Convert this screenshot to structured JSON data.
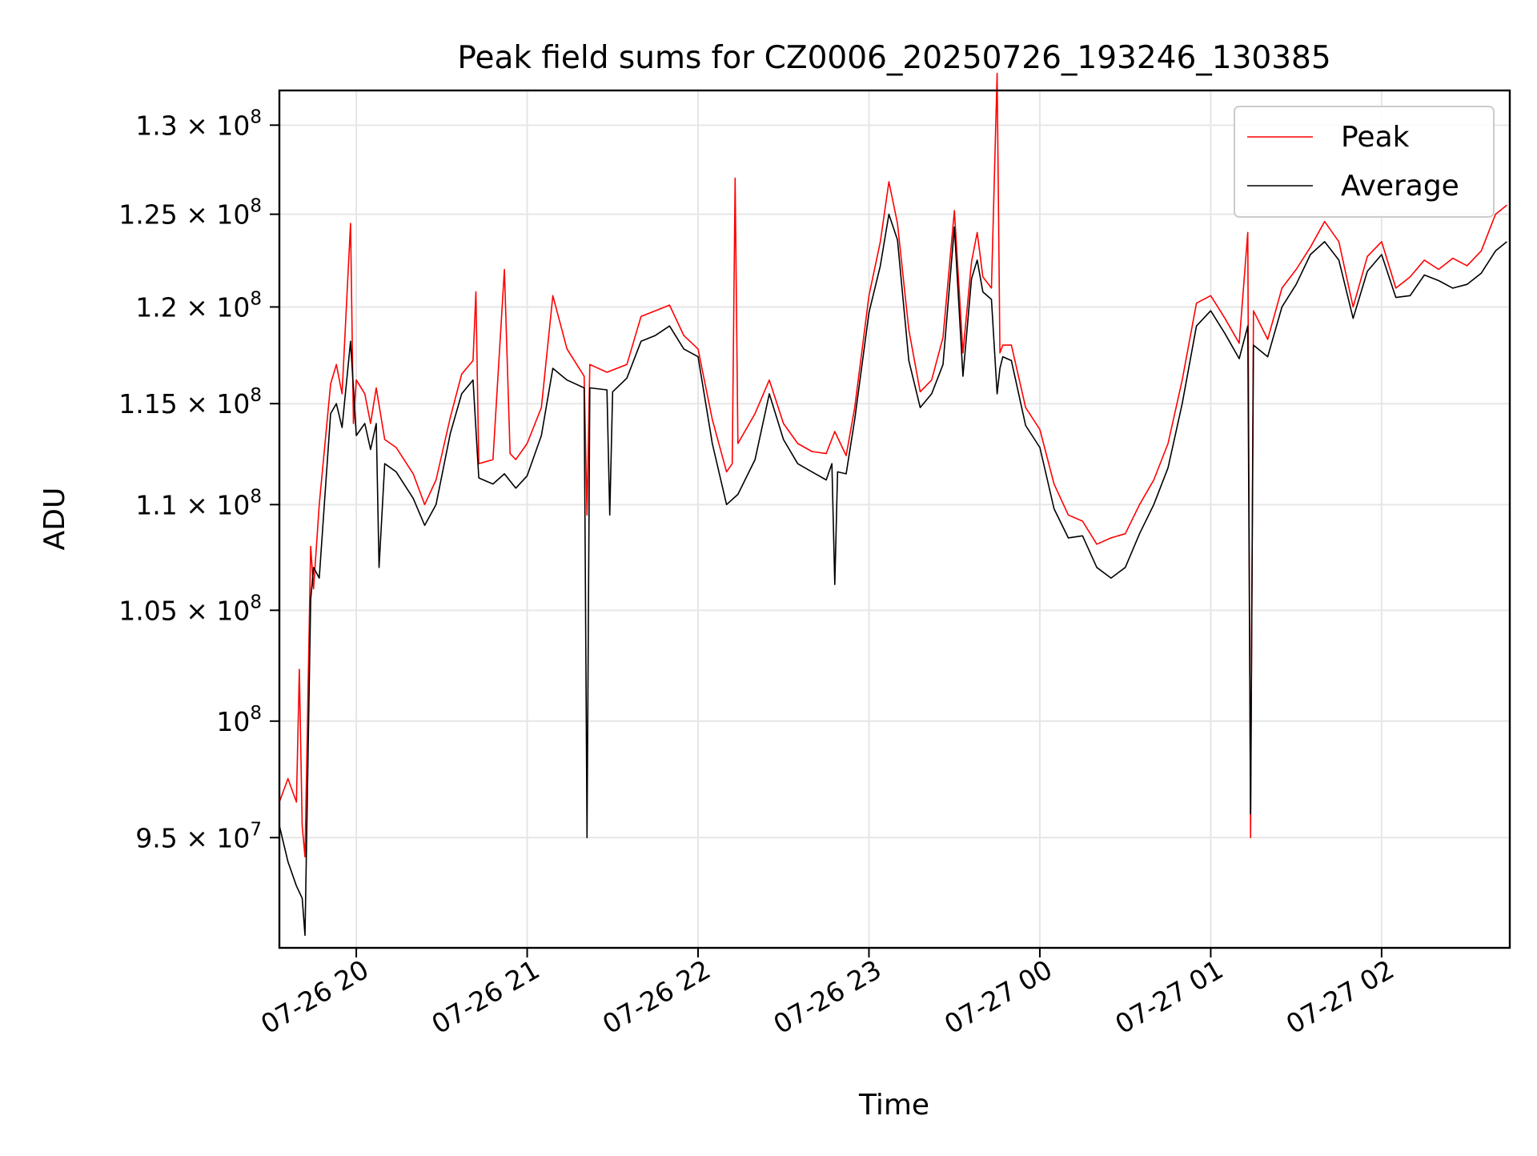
{
  "chart_data": {
    "type": "line",
    "title": "Peak field sums for CZ0006_20250726_193246_130385",
    "xlabel": "Time",
    "ylabel": "ADU",
    "x_type": "time",
    "xlim": [
      "2025-07-26T19:33:00",
      "2025-07-27T02:45:00"
    ],
    "ylim": [
      90500000,
      132000000
    ],
    "y_scale": "log",
    "grid": true,
    "legend_position": "top-right",
    "x_ticks": [
      {
        "value": "2025-07-26T20:00:00",
        "label": "07-26 20"
      },
      {
        "value": "2025-07-26T21:00:00",
        "label": "07-26 21"
      },
      {
        "value": "2025-07-26T22:00:00",
        "label": "07-26 22"
      },
      {
        "value": "2025-07-26T23:00:00",
        "label": "07-26 23"
      },
      {
        "value": "2025-07-27T00:00:00",
        "label": "07-27 00"
      },
      {
        "value": "2025-07-27T01:00:00",
        "label": "07-27 01"
      },
      {
        "value": "2025-07-27T02:00:00",
        "label": "07-27 02"
      }
    ],
    "y_ticks": [
      {
        "value": 95000000,
        "mant": "9.5 × 10",
        "exp": "7"
      },
      {
        "value": 100000000,
        "mant": "10",
        "exp": "8"
      },
      {
        "value": 105000000,
        "mant": "1.05 × 10",
        "exp": "8"
      },
      {
        "value": 110000000,
        "mant": "1.1 × 10",
        "exp": "8"
      },
      {
        "value": 115000000,
        "mant": "1.15 × 10",
        "exp": "8"
      },
      {
        "value": 120000000,
        "mant": "1.2 × 10",
        "exp": "8"
      },
      {
        "value": 125000000,
        "mant": "1.25 × 10",
        "exp": "8"
      },
      {
        "value": 130000000,
        "mant": "1.3 × 10",
        "exp": "8"
      }
    ],
    "series": [
      {
        "name": "Peak",
        "color": "#ff0000",
        "x": [
          "2025-07-26T19:33:00",
          "2025-07-26T19:36:00",
          "2025-07-26T19:39:00",
          "2025-07-26T19:40:00",
          "2025-07-26T19:41:00",
          "2025-07-26T19:42:00",
          "2025-07-26T19:44:00",
          "2025-07-26T19:45:00",
          "2025-07-26T19:47:00",
          "2025-07-26T19:51:00",
          "2025-07-26T19:53:00",
          "2025-07-26T19:55:00",
          "2025-07-26T19:58:00",
          "2025-07-26T19:59:00",
          "2025-07-26T20:00:00",
          "2025-07-26T20:03:00",
          "2025-07-26T20:05:00",
          "2025-07-26T20:07:00",
          "2025-07-26T20:10:00",
          "2025-07-26T20:14:00",
          "2025-07-26T20:20:00",
          "2025-07-26T20:24:00",
          "2025-07-26T20:28:00",
          "2025-07-26T20:33:00",
          "2025-07-26T20:37:00",
          "2025-07-26T20:41:00",
          "2025-07-26T20:42:00",
          "2025-07-26T20:43:00",
          "2025-07-26T20:48:00",
          "2025-07-26T20:52:00",
          "2025-07-26T20:54:00",
          "2025-07-26T20:56:00",
          "2025-07-26T21:00:00",
          "2025-07-26T21:05:00",
          "2025-07-26T21:09:00",
          "2025-07-26T21:14:00",
          "2025-07-26T21:20:00",
          "2025-07-26T21:21:00",
          "2025-07-26T21:22:00",
          "2025-07-26T21:28:00",
          "2025-07-26T21:35:00",
          "2025-07-26T21:40:00",
          "2025-07-26T21:45:00",
          "2025-07-26T21:50:00",
          "2025-07-26T21:55:00",
          "2025-07-26T22:00:00",
          "2025-07-26T22:05:00",
          "2025-07-26T22:10:00",
          "2025-07-26T22:12:00",
          "2025-07-26T22:13:00",
          "2025-07-26T22:14:00",
          "2025-07-26T22:20:00",
          "2025-07-26T22:25:00",
          "2025-07-26T22:30:00",
          "2025-07-26T22:35:00",
          "2025-07-26T22:40:00",
          "2025-07-26T22:45:00",
          "2025-07-26T22:48:00",
          "2025-07-26T22:52:00",
          "2025-07-26T22:55:00",
          "2025-07-26T23:00:00",
          "2025-07-26T23:04:00",
          "2025-07-26T23:07:00",
          "2025-07-26T23:10:00",
          "2025-07-26T23:14:00",
          "2025-07-26T23:18:00",
          "2025-07-26T23:22:00",
          "2025-07-26T23:26:00",
          "2025-07-26T23:30:00",
          "2025-07-26T23:33:00",
          "2025-07-26T23:36:00",
          "2025-07-26T23:38:00",
          "2025-07-26T23:40:00",
          "2025-07-26T23:43:00",
          "2025-07-26T23:45:00",
          "2025-07-26T23:46:00",
          "2025-07-26T23:47:00",
          "2025-07-26T23:50:00",
          "2025-07-26T23:55:00",
          "2025-07-27T00:00:00",
          "2025-07-27T00:05:00",
          "2025-07-27T00:10:00",
          "2025-07-27T00:15:00",
          "2025-07-27T00:20:00",
          "2025-07-27T00:25:00",
          "2025-07-27T00:30:00",
          "2025-07-27T00:35:00",
          "2025-07-27T00:40:00",
          "2025-07-27T00:45:00",
          "2025-07-27T00:50:00",
          "2025-07-27T00:55:00",
          "2025-07-27T01:00:00",
          "2025-07-27T01:05:00",
          "2025-07-27T01:10:00",
          "2025-07-27T01:13:00",
          "2025-07-27T01:14:00",
          "2025-07-27T01:15:00",
          "2025-07-27T01:20:00",
          "2025-07-27T01:25:00",
          "2025-07-27T01:30:00",
          "2025-07-27T01:35:00",
          "2025-07-27T01:40:00",
          "2025-07-27T01:45:00",
          "2025-07-27T01:50:00",
          "2025-07-27T01:55:00",
          "2025-07-27T02:00:00",
          "2025-07-27T02:05:00",
          "2025-07-27T02:10:00",
          "2025-07-27T02:15:00",
          "2025-07-27T02:20:00",
          "2025-07-27T02:25:00",
          "2025-07-27T02:30:00",
          "2025-07-27T02:35:00",
          "2025-07-27T02:40:00",
          "2025-07-27T02:44:00"
        ],
        "values": [
          96500000,
          97500000,
          96500000,
          102300000,
          95500000,
          94200000,
          108000000,
          106000000,
          110000000,
          116000000,
          117000000,
          115500000,
          124500000,
          114000000,
          116200000,
          115500000,
          114000000,
          115800000,
          113200000,
          112800000,
          111500000,
          110000000,
          111200000,
          114300000,
          116500000,
          117200000,
          120800000,
          112000000,
          112200000,
          122000000,
          112500000,
          112200000,
          113000000,
          114800000,
          120600000,
          117800000,
          116400000,
          109500000,
          117000000,
          116600000,
          117000000,
          119500000,
          119800000,
          120100000,
          118500000,
          117800000,
          114200000,
          111600000,
          112000000,
          127000000,
          113000000,
          114500000,
          116200000,
          114000000,
          113000000,
          112600000,
          112500000,
          113600000,
          112400000,
          114800000,
          120600000,
          123500000,
          126800000,
          124500000,
          118800000,
          115600000,
          116200000,
          118400000,
          125200000,
          117600000,
          122400000,
          124000000,
          121600000,
          121000000,
          133000000,
          117600000,
          118000000,
          118000000,
          114800000,
          113700000,
          111000000,
          109500000,
          109200000,
          108100000,
          108400000,
          108600000,
          110000000,
          111200000,
          113000000,
          116200000,
          120200000,
          120600000,
          119400000,
          118100000,
          124000000,
          95000000,
          119800000,
          118300000,
          121000000,
          122000000,
          123200000,
          124600000,
          123500000,
          120000000,
          122700000,
          123500000,
          121000000,
          121600000,
          122500000,
          122000000,
          122600000,
          122200000,
          123000000,
          125000000,
          125500000
        ]
      },
      {
        "name": "Average",
        "color": "#000000",
        "x": [
          "2025-07-26T19:33:00",
          "2025-07-26T19:36:00",
          "2025-07-26T19:39:00",
          "2025-07-26T19:41:00",
          "2025-07-26T19:42:00",
          "2025-07-26T19:44:00",
          "2025-07-26T19:45:00",
          "2025-07-26T19:47:00",
          "2025-07-26T19:51:00",
          "2025-07-26T19:53:00",
          "2025-07-26T19:55:00",
          "2025-07-26T19:58:00",
          "2025-07-26T20:00:00",
          "2025-07-26T20:03:00",
          "2025-07-26T20:05:00",
          "2025-07-26T20:07:00",
          "2025-07-26T20:08:00",
          "2025-07-26T20:10:00",
          "2025-07-26T20:14:00",
          "2025-07-26T20:20:00",
          "2025-07-26T20:24:00",
          "2025-07-26T20:28:00",
          "2025-07-26T20:33:00",
          "2025-07-26T20:37:00",
          "2025-07-26T20:41:00",
          "2025-07-26T20:43:00",
          "2025-07-26T20:48:00",
          "2025-07-26T20:52:00",
          "2025-07-26T20:56:00",
          "2025-07-26T21:00:00",
          "2025-07-26T21:05:00",
          "2025-07-26T21:09:00",
          "2025-07-26T21:14:00",
          "2025-07-26T21:20:00",
          "2025-07-26T21:21:00",
          "2025-07-26T21:22:00",
          "2025-07-26T21:28:00",
          "2025-07-26T21:29:00",
          "2025-07-26T21:30:00",
          "2025-07-26T21:35:00",
          "2025-07-26T21:40:00",
          "2025-07-26T21:45:00",
          "2025-07-26T21:50:00",
          "2025-07-26T21:55:00",
          "2025-07-26T22:00:00",
          "2025-07-26T22:05:00",
          "2025-07-26T22:10:00",
          "2025-07-26T22:14:00",
          "2025-07-26T22:20:00",
          "2025-07-26T22:25:00",
          "2025-07-26T22:30:00",
          "2025-07-26T22:35:00",
          "2025-07-26T22:40:00",
          "2025-07-26T22:45:00",
          "2025-07-26T22:47:00",
          "2025-07-26T22:48:00",
          "2025-07-26T22:49:00",
          "2025-07-26T22:52:00",
          "2025-07-26T22:55:00",
          "2025-07-26T23:00:00",
          "2025-07-26T23:04:00",
          "2025-07-26T23:07:00",
          "2025-07-26T23:10:00",
          "2025-07-26T23:14:00",
          "2025-07-26T23:18:00",
          "2025-07-26T23:22:00",
          "2025-07-26T23:26:00",
          "2025-07-26T23:30:00",
          "2025-07-26T23:33:00",
          "2025-07-26T23:36:00",
          "2025-07-26T23:38:00",
          "2025-07-26T23:40:00",
          "2025-07-26T23:43:00",
          "2025-07-26T23:45:00",
          "2025-07-26T23:46:00",
          "2025-07-26T23:47:00",
          "2025-07-26T23:50:00",
          "2025-07-26T23:55:00",
          "2025-07-27T00:00:00",
          "2025-07-27T00:05:00",
          "2025-07-27T00:10:00",
          "2025-07-27T00:15:00",
          "2025-07-27T00:20:00",
          "2025-07-27T00:25:00",
          "2025-07-27T00:30:00",
          "2025-07-27T00:35:00",
          "2025-07-27T00:40:00",
          "2025-07-27T00:45:00",
          "2025-07-27T00:50:00",
          "2025-07-27T00:55:00",
          "2025-07-27T01:00:00",
          "2025-07-27T01:05:00",
          "2025-07-27T01:10:00",
          "2025-07-27T01:13:00",
          "2025-07-27T01:14:00",
          "2025-07-27T01:15:00",
          "2025-07-27T01:20:00",
          "2025-07-27T01:25:00",
          "2025-07-27T01:30:00",
          "2025-07-27T01:35:00",
          "2025-07-27T01:40:00",
          "2025-07-27T01:45:00",
          "2025-07-27T01:50:00",
          "2025-07-27T01:55:00",
          "2025-07-27T02:00:00",
          "2025-07-27T02:05:00",
          "2025-07-27T02:10:00",
          "2025-07-27T02:15:00",
          "2025-07-27T02:20:00",
          "2025-07-27T02:25:00",
          "2025-07-27T02:30:00",
          "2025-07-27T02:35:00",
          "2025-07-27T02:40:00",
          "2025-07-27T02:44:00"
        ],
        "values": [
          95500000,
          94000000,
          93000000,
          92500000,
          91000000,
          105500000,
          107000000,
          106500000,
          114500000,
          115000000,
          113800000,
          118200000,
          113400000,
          114000000,
          112700000,
          114000000,
          107000000,
          112000000,
          111600000,
          110300000,
          109000000,
          110000000,
          113500000,
          115500000,
          116200000,
          111300000,
          111000000,
          111500000,
          110800000,
          111400000,
          113400000,
          116800000,
          116200000,
          115800000,
          95000000,
          115800000,
          115700000,
          109500000,
          115600000,
          116300000,
          118200000,
          118500000,
          119000000,
          117800000,
          117400000,
          113000000,
          110000000,
          110500000,
          112200000,
          115500000,
          113200000,
          112000000,
          111600000,
          111200000,
          112000000,
          106200000,
          111600000,
          111500000,
          114200000,
          119700000,
          122200000,
          125000000,
          123600000,
          117200000,
          114800000,
          115500000,
          117000000,
          124300000,
          116400000,
          121500000,
          122500000,
          120800000,
          120400000,
          115500000,
          116800000,
          117400000,
          117200000,
          113900000,
          112800000,
          109800000,
          108400000,
          108500000,
          107000000,
          106500000,
          107000000,
          108600000,
          110000000,
          111800000,
          115000000,
          119000000,
          119800000,
          118600000,
          117300000,
          119000000,
          96000000,
          118000000,
          117400000,
          120000000,
          121200000,
          122800000,
          123500000,
          122500000,
          119400000,
          121900000,
          122800000,
          120500000,
          120600000,
          121700000,
          121400000,
          121000000,
          121200000,
          121800000,
          123000000,
          123500000
        ]
      }
    ]
  }
}
